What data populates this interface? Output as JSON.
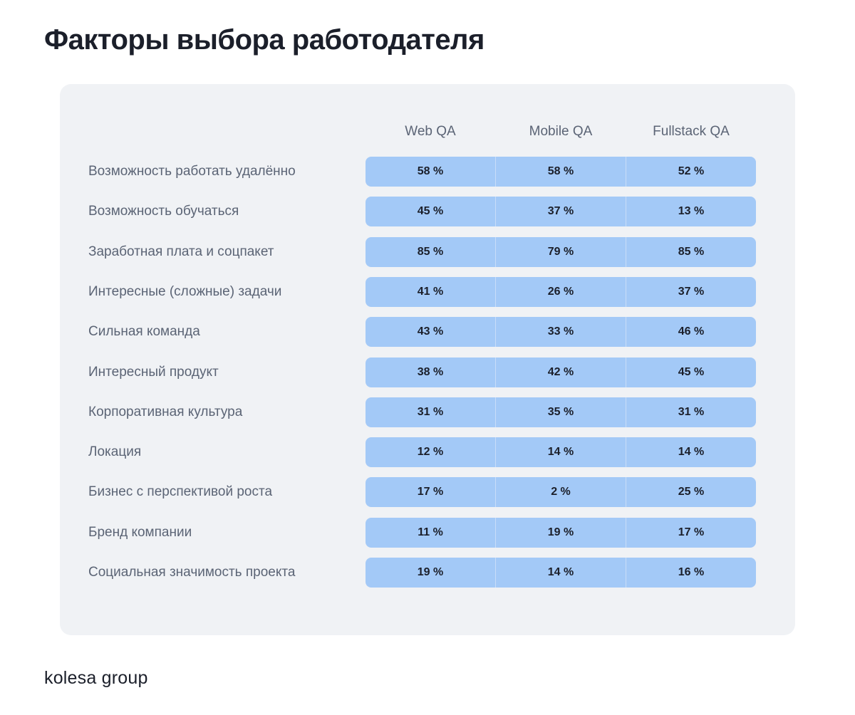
{
  "title": "Факторы выбора работодателя",
  "brand": "kolesa group",
  "chart_data": {
    "type": "table",
    "title": "Факторы выбора работодателя",
    "columns": [
      "Web QA",
      "Mobile QA",
      "Fullstack QA"
    ],
    "unit": "%",
    "rows": [
      {
        "label": "Возможность работать удалённо",
        "values": [
          "58 %",
          "58 %",
          "52 %"
        ]
      },
      {
        "label": "Возможность обучаться",
        "values": [
          "45 %",
          "37 %",
          "13 %"
        ]
      },
      {
        "label": "Заработная плата и соцпакет",
        "values": [
          "85 %",
          "79 %",
          "85 %"
        ]
      },
      {
        "label": "Интересные (сложные) задачи",
        "values": [
          "41 %",
          "26 %",
          "37 %"
        ]
      },
      {
        "label": "Сильная команда",
        "values": [
          "43 %",
          "33 %",
          "46 %"
        ]
      },
      {
        "label": "Интересный продукт",
        "values": [
          "38 %",
          "42 %",
          "45 %"
        ]
      },
      {
        "label": "Корпоративная культура",
        "values": [
          "31 %",
          "35 %",
          "31 %"
        ]
      },
      {
        "label": "Локация",
        "values": [
          "12 %",
          "14 %",
          "14 %"
        ]
      },
      {
        "label": "Бизнес с перспективой роста",
        "values": [
          "17 %",
          "2 %",
          "25 %"
        ]
      },
      {
        "label": "Бренд компании",
        "values": [
          "11 %",
          "19 %",
          "17 %"
        ]
      },
      {
        "label": "Социальная значимость проекта",
        "values": [
          "19 %",
          "14 %",
          "16 %"
        ]
      }
    ]
  }
}
